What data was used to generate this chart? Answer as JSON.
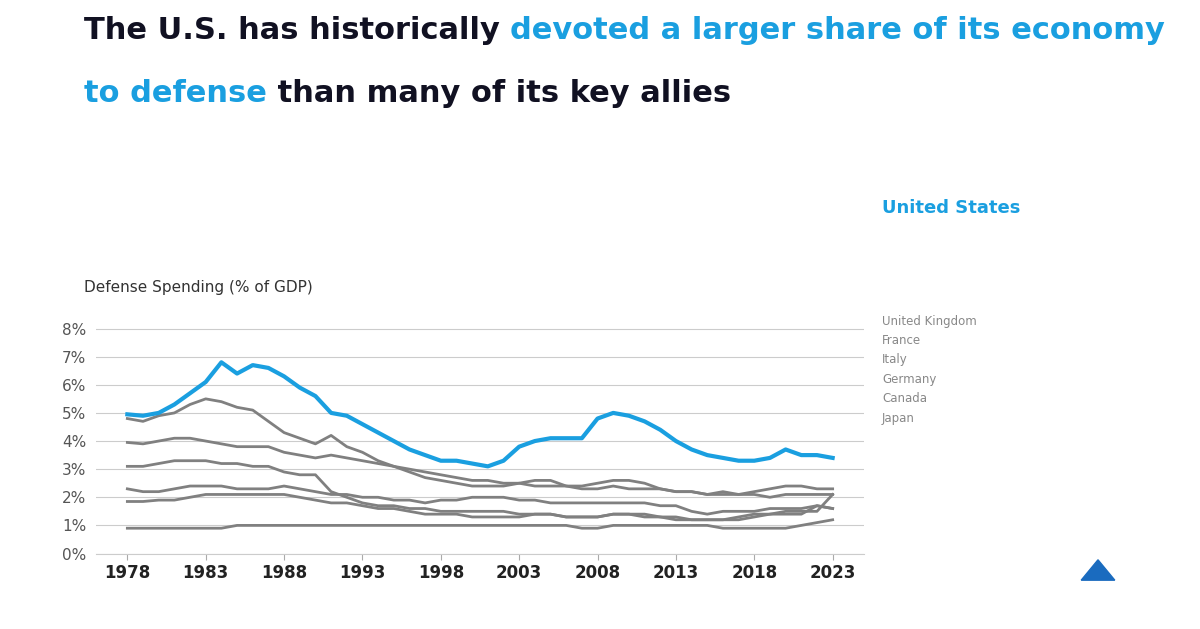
{
  "title_black1": "The U.S. has historically ",
  "title_blue1": "devoted a larger share of its economy",
  "title_blue2": "to defense",
  "title_black2": " than many of its key allies",
  "ylabel": "Defense Spending (% of GDP)",
  "us_label": "United States",
  "ally_labels": [
    "United Kingdom",
    "France",
    "Italy",
    "Germany",
    "Canada",
    "Japan"
  ],
  "background_color": "#ffffff",
  "us_color": "#1a9fe0",
  "ally_color": "#808080",
  "title_color_black": "#111122",
  "years": [
    1978,
    1979,
    1980,
    1981,
    1982,
    1983,
    1984,
    1985,
    1986,
    1987,
    1988,
    1989,
    1990,
    1991,
    1992,
    1993,
    1994,
    1995,
    1996,
    1997,
    1998,
    1999,
    2000,
    2001,
    2002,
    2003,
    2004,
    2005,
    2006,
    2007,
    2008,
    2009,
    2010,
    2011,
    2012,
    2013,
    2014,
    2015,
    2016,
    2017,
    2018,
    2019,
    2020,
    2021,
    2022,
    2023
  ],
  "us_data": [
    4.95,
    4.9,
    5.0,
    5.3,
    5.7,
    6.1,
    6.8,
    6.4,
    6.7,
    6.6,
    6.3,
    5.9,
    5.6,
    5.0,
    4.9,
    4.6,
    4.3,
    4.0,
    3.7,
    3.5,
    3.3,
    3.3,
    3.2,
    3.1,
    3.3,
    3.8,
    4.0,
    4.1,
    4.1,
    4.1,
    4.8,
    5.0,
    4.9,
    4.7,
    4.4,
    4.0,
    3.7,
    3.5,
    3.4,
    3.3,
    3.3,
    3.4,
    3.7,
    3.5,
    3.5,
    3.4
  ],
  "uk_data": [
    4.8,
    4.7,
    4.9,
    5.0,
    5.3,
    5.5,
    5.4,
    5.2,
    5.1,
    4.7,
    4.3,
    4.1,
    3.9,
    4.2,
    3.8,
    3.6,
    3.3,
    3.1,
    2.9,
    2.7,
    2.6,
    2.5,
    2.4,
    2.4,
    2.4,
    2.5,
    2.6,
    2.6,
    2.4,
    2.4,
    2.5,
    2.6,
    2.6,
    2.5,
    2.3,
    2.2,
    2.2,
    2.1,
    2.2,
    2.1,
    2.2,
    2.3,
    2.4,
    2.4,
    2.3,
    2.3
  ],
  "france_data": [
    3.95,
    3.9,
    4.0,
    4.1,
    4.1,
    4.0,
    3.9,
    3.8,
    3.8,
    3.8,
    3.6,
    3.5,
    3.4,
    3.5,
    3.4,
    3.3,
    3.2,
    3.1,
    3.0,
    2.9,
    2.8,
    2.7,
    2.6,
    2.6,
    2.5,
    2.5,
    2.4,
    2.4,
    2.4,
    2.3,
    2.3,
    2.4,
    2.3,
    2.3,
    2.3,
    2.2,
    2.2,
    2.1,
    2.1,
    2.1,
    2.1,
    2.0,
    2.1,
    2.1,
    2.1,
    2.1
  ],
  "italy_data": [
    2.3,
    2.2,
    2.2,
    2.3,
    2.4,
    2.4,
    2.4,
    2.3,
    2.3,
    2.3,
    2.4,
    2.3,
    2.2,
    2.1,
    2.1,
    2.0,
    2.0,
    1.9,
    1.9,
    1.8,
    1.9,
    1.9,
    2.0,
    2.0,
    2.0,
    1.9,
    1.9,
    1.8,
    1.8,
    1.8,
    1.8,
    1.8,
    1.8,
    1.8,
    1.7,
    1.7,
    1.5,
    1.4,
    1.5,
    1.5,
    1.5,
    1.6,
    1.6,
    1.6,
    1.7,
    1.6
  ],
  "germany_data": [
    3.1,
    3.1,
    3.2,
    3.3,
    3.3,
    3.3,
    3.2,
    3.2,
    3.1,
    3.1,
    2.9,
    2.8,
    2.8,
    2.2,
    2.0,
    1.8,
    1.7,
    1.7,
    1.6,
    1.6,
    1.5,
    1.5,
    1.5,
    1.5,
    1.5,
    1.4,
    1.4,
    1.4,
    1.3,
    1.3,
    1.3,
    1.4,
    1.4,
    1.3,
    1.3,
    1.3,
    1.2,
    1.2,
    1.2,
    1.2,
    1.3,
    1.4,
    1.5,
    1.5,
    1.5,
    2.1
  ],
  "canada_data": [
    1.85,
    1.85,
    1.9,
    1.9,
    2.0,
    2.1,
    2.1,
    2.1,
    2.1,
    2.1,
    2.1,
    2.0,
    1.9,
    1.8,
    1.8,
    1.7,
    1.6,
    1.6,
    1.5,
    1.4,
    1.4,
    1.4,
    1.3,
    1.3,
    1.3,
    1.3,
    1.4,
    1.4,
    1.3,
    1.3,
    1.3,
    1.4,
    1.4,
    1.4,
    1.3,
    1.2,
    1.2,
    1.2,
    1.2,
    1.3,
    1.4,
    1.4,
    1.4,
    1.4,
    1.7,
    1.6
  ],
  "japan_data": [
    0.9,
    0.9,
    0.9,
    0.9,
    0.9,
    0.9,
    0.9,
    1.0,
    1.0,
    1.0,
    1.0,
    1.0,
    1.0,
    1.0,
    1.0,
    1.0,
    1.0,
    1.0,
    1.0,
    1.0,
    1.0,
    1.0,
    1.0,
    1.0,
    1.0,
    1.0,
    1.0,
    1.0,
    1.0,
    0.9,
    0.9,
    1.0,
    1.0,
    1.0,
    1.0,
    1.0,
    1.0,
    1.0,
    0.9,
    0.9,
    0.9,
    0.9,
    0.9,
    1.0,
    1.1,
    1.2
  ],
  "ylim": [
    0,
    8.5
  ],
  "yticks": [
    0,
    1,
    2,
    3,
    4,
    5,
    6,
    7,
    8
  ],
  "xticks": [
    1978,
    1983,
    1988,
    1993,
    1998,
    2003,
    2008,
    2013,
    2018,
    2023
  ],
  "gridcolor": "#cccccc",
  "linewidth_us": 3.0,
  "linewidth_ally": 2.0,
  "logo_color": "#1a6bbf"
}
